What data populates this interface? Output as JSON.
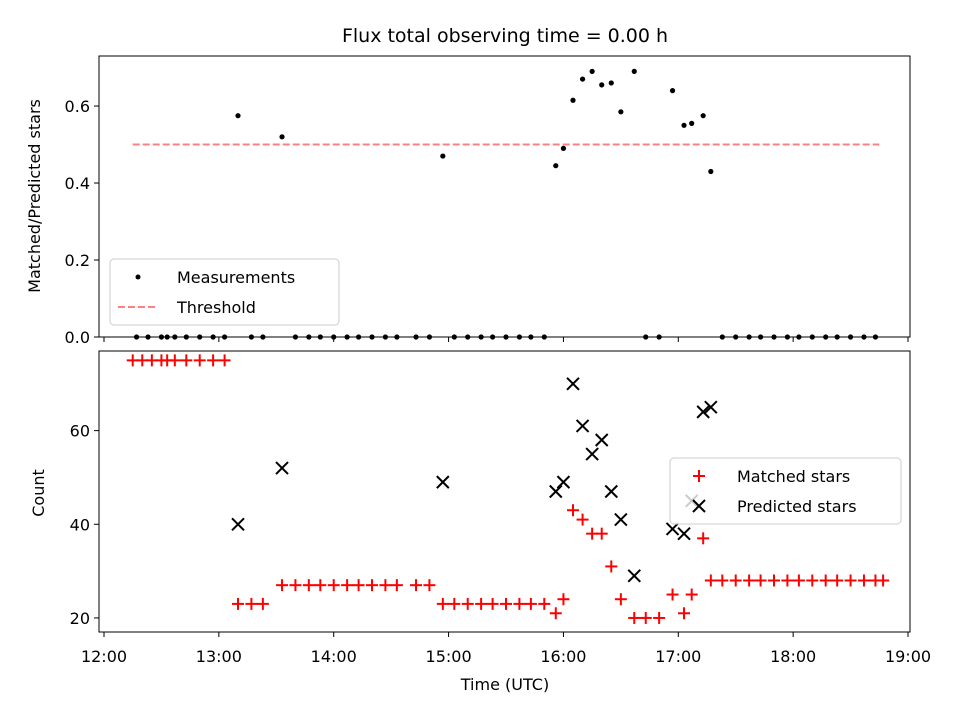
{
  "chart_data": [
    {
      "type": "scatter",
      "title": "Flux total observing time = 0.00 h",
      "xlabel": "",
      "ylabel": "Matched/Predicted stars",
      "xlim": [
        "12:00",
        "19:00"
      ],
      "ylim": [
        0,
        0.73
      ],
      "yticks": [
        "0.0",
        "0.2",
        "0.4",
        "0.6"
      ],
      "legend": {
        "location": "lower-left",
        "entries": [
          "Measurements",
          "Threshold"
        ]
      },
      "threshold": {
        "name": "Threshold",
        "value": 0.5,
        "x_start": "12:15",
        "x_end": "18:45",
        "color": "#ff8080"
      },
      "series": [
        {
          "name": "Measurements",
          "color": "#000000",
          "points": [
            [
              "12:17",
              0.0
            ],
            [
              "12:23",
              0.0
            ],
            [
              "12:30",
              0.0
            ],
            [
              "12:33",
              0.0
            ],
            [
              "12:37",
              0.0
            ],
            [
              "12:43",
              0.0
            ],
            [
              "12:50",
              0.0
            ],
            [
              "12:57",
              0.0
            ],
            [
              "13:03",
              0.0
            ],
            [
              "13:10",
              0.575
            ],
            [
              "13:17",
              0.0
            ],
            [
              "13:23",
              0.0
            ],
            [
              "13:33",
              0.52
            ],
            [
              "13:40",
              0.0
            ],
            [
              "13:47",
              0.0
            ],
            [
              "13:53",
              0.0
            ],
            [
              "14:00",
              0.0
            ],
            [
              "14:07",
              0.0
            ],
            [
              "14:13",
              0.0
            ],
            [
              "14:20",
              0.0
            ],
            [
              "14:27",
              0.0
            ],
            [
              "14:33",
              0.0
            ],
            [
              "14:43",
              0.0
            ],
            [
              "14:50",
              0.0
            ],
            [
              "14:57",
              0.47
            ],
            [
              "15:03",
              0.0
            ],
            [
              "15:10",
              0.0
            ],
            [
              "15:17",
              0.0
            ],
            [
              "15:23",
              0.0
            ],
            [
              "15:30",
              0.0
            ],
            [
              "15:37",
              0.0
            ],
            [
              "15:43",
              0.0
            ],
            [
              "15:50",
              0.0
            ],
            [
              "15:56",
              0.445
            ],
            [
              "16:00",
              0.49
            ],
            [
              "16:05",
              0.615
            ],
            [
              "16:10",
              0.67
            ],
            [
              "16:15",
              0.69
            ],
            [
              "16:20",
              0.655
            ],
            [
              "16:25",
              0.66
            ],
            [
              "16:30",
              0.585
            ],
            [
              "16:37",
              0.69
            ],
            [
              "16:43",
              0.0
            ],
            [
              "16:50",
              0.0
            ],
            [
              "16:57",
              0.64
            ],
            [
              "17:03",
              0.55
            ],
            [
              "17:07",
              0.555
            ],
            [
              "17:13",
              0.575
            ],
            [
              "17:17",
              0.43
            ],
            [
              "17:23",
              0.0
            ],
            [
              "17:30",
              0.0
            ],
            [
              "17:37",
              0.0
            ],
            [
              "17:43",
              0.0
            ],
            [
              "17:50",
              0.0
            ],
            [
              "17:57",
              0.0
            ],
            [
              "18:03",
              0.0
            ],
            [
              "18:10",
              0.0
            ],
            [
              "18:17",
              0.0
            ],
            [
              "18:23",
              0.0
            ],
            [
              "18:30",
              0.0
            ],
            [
              "18:37",
              0.0
            ],
            [
              "18:43",
              0.0
            ]
          ]
        }
      ]
    },
    {
      "type": "scatter",
      "title": "",
      "xlabel": "Time (UTC)",
      "ylabel": "Count",
      "xlim": [
        "12:00",
        "19:00"
      ],
      "ylim": [
        17,
        77
      ],
      "xticks": [
        "12:00",
        "13:00",
        "14:00",
        "15:00",
        "16:00",
        "17:00",
        "18:00",
        "19:00"
      ],
      "yticks": [
        "20",
        "40",
        "60"
      ],
      "legend": {
        "location": "center-right",
        "entries": [
          "Matched stars",
          "Predicted stars"
        ]
      },
      "series": [
        {
          "name": "Matched stars",
          "marker": "+",
          "color": "#ff0000",
          "points": [
            [
              "12:15",
              75
            ],
            [
              "12:20",
              75
            ],
            [
              "12:25",
              75
            ],
            [
              "12:30",
              75
            ],
            [
              "12:33",
              75
            ],
            [
              "12:37",
              75
            ],
            [
              "12:43",
              75
            ],
            [
              "12:50",
              75
            ],
            [
              "12:57",
              75
            ],
            [
              "13:03",
              75
            ],
            [
              "13:10",
              23
            ],
            [
              "13:17",
              23
            ],
            [
              "13:23",
              23
            ],
            [
              "13:33",
              27
            ],
            [
              "13:40",
              27
            ],
            [
              "13:47",
              27
            ],
            [
              "13:53",
              27
            ],
            [
              "14:00",
              27
            ],
            [
              "14:07",
              27
            ],
            [
              "14:13",
              27
            ],
            [
              "14:20",
              27
            ],
            [
              "14:27",
              27
            ],
            [
              "14:33",
              27
            ],
            [
              "14:43",
              27
            ],
            [
              "14:50",
              27
            ],
            [
              "14:57",
              23
            ],
            [
              "15:03",
              23
            ],
            [
              "15:10",
              23
            ],
            [
              "15:17",
              23
            ],
            [
              "15:23",
              23
            ],
            [
              "15:30",
              23
            ],
            [
              "15:37",
              23
            ],
            [
              "15:43",
              23
            ],
            [
              "15:50",
              23
            ],
            [
              "15:56",
              21
            ],
            [
              "16:00",
              24
            ],
            [
              "16:05",
              43
            ],
            [
              "16:10",
              41
            ],
            [
              "16:15",
              38
            ],
            [
              "16:20",
              38
            ],
            [
              "16:25",
              31
            ],
            [
              "16:30",
              24
            ],
            [
              "16:37",
              20
            ],
            [
              "16:43",
              20
            ],
            [
              "16:50",
              20
            ],
            [
              "16:57",
              25
            ],
            [
              "17:03",
              21
            ],
            [
              "17:07",
              25
            ],
            [
              "17:13",
              37
            ],
            [
              "17:17",
              28
            ],
            [
              "17:23",
              28
            ],
            [
              "17:30",
              28
            ],
            [
              "17:37",
              28
            ],
            [
              "17:43",
              28
            ],
            [
              "17:50",
              28
            ],
            [
              "17:57",
              28
            ],
            [
              "18:03",
              28
            ],
            [
              "18:10",
              28
            ],
            [
              "18:17",
              28
            ],
            [
              "18:23",
              28
            ],
            [
              "18:30",
              28
            ],
            [
              "18:37",
              28
            ],
            [
              "18:43",
              28
            ],
            [
              "18:47",
              28
            ]
          ]
        },
        {
          "name": "Predicted stars",
          "marker": "x",
          "color": "#000000",
          "points": [
            [
              "13:10",
              40
            ],
            [
              "13:33",
              52
            ],
            [
              "14:57",
              49
            ],
            [
              "15:56",
              47
            ],
            [
              "16:00",
              49
            ],
            [
              "16:05",
              70
            ],
            [
              "16:10",
              61
            ],
            [
              "16:15",
              55
            ],
            [
              "16:20",
              58
            ],
            [
              "16:25",
              47
            ],
            [
              "16:30",
              41
            ],
            [
              "16:37",
              29
            ],
            [
              "16:57",
              39
            ],
            [
              "17:03",
              38
            ],
            [
              "17:07",
              45
            ],
            [
              "17:13",
              64
            ],
            [
              "17:17",
              65
            ]
          ]
        }
      ]
    }
  ]
}
